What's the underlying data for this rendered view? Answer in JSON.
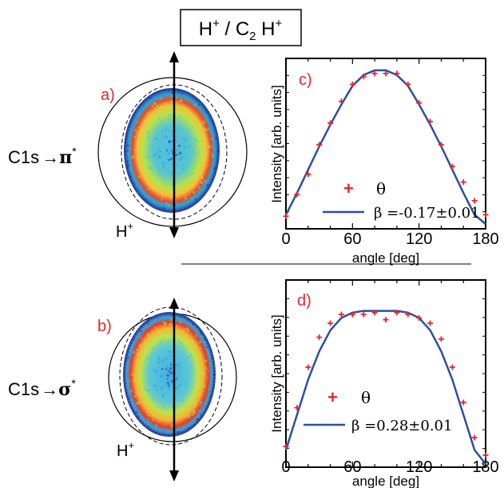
{
  "figure": {
    "title_main": "H",
    "title_sup1": "+",
    "title_sep": " / C",
    "title_sub": "2",
    "title_h": " H",
    "title_sup2": "+"
  },
  "chart_data": [
    {
      "type": "line",
      "panel_label": "c)",
      "transition_label": "C1s",
      "transition_arrow": "→",
      "transition_orbital": "π",
      "transition_star": "*",
      "ion_label": "H",
      "ion_sup": "+",
      "xlabel": "angle [deg]",
      "ylabel": "Intensity [arb. units]",
      "xlim": [
        0,
        180
      ],
      "ylim": [
        0,
        1
      ],
      "xticks": [
        "0",
        "60",
        "120",
        "180"
      ],
      "legend": {
        "marker_label": "θ",
        "line_label": "β =-0.17±0.01"
      },
      "colors": {
        "marker": "#e8262b",
        "line": "#2c4fa3",
        "label": "#e8262b"
      },
      "series": [
        {
          "kind": "scatter",
          "x": [
            0,
            10,
            20,
            30,
            40,
            50,
            60,
            70,
            80,
            90,
            100,
            110,
            120,
            130,
            140,
            150,
            160,
            170,
            180
          ],
          "y": [
            0.05,
            0.19,
            0.32,
            0.51,
            0.65,
            0.79,
            0.9,
            0.95,
            0.97,
            0.97,
            0.97,
            0.9,
            0.78,
            0.66,
            0.51,
            0.37,
            0.27,
            0.15,
            0.06
          ]
        },
        {
          "kind": "line",
          "x": [
            0,
            10,
            20,
            30,
            40,
            50,
            60,
            70,
            80,
            90,
            100,
            110,
            120,
            130,
            140,
            150,
            160,
            170,
            180
          ],
          "y": [
            0.06,
            0.2,
            0.35,
            0.5,
            0.64,
            0.77,
            0.89,
            0.96,
            0.99,
            0.99,
            0.96,
            0.89,
            0.77,
            0.64,
            0.5,
            0.35,
            0.2,
            0.06,
            0.0
          ]
        }
      ]
    },
    {
      "type": "line",
      "panel_label": "d)",
      "transition_label": "C1s",
      "transition_arrow": "→",
      "transition_orbital": "σ",
      "transition_star": "*",
      "ion_label": "H",
      "ion_sup": "+",
      "xlabel": "angle [deg]",
      "ylabel": "Intensity [arb. units]",
      "xlim": [
        0,
        180
      ],
      "ylim": [
        0,
        1
      ],
      "xticks": [
        "0",
        "60",
        "120",
        "180"
      ],
      "legend": {
        "marker_label": "θ",
        "line_label": "β =0.28±0.01"
      },
      "colors": {
        "marker": "#e8262b",
        "line": "#2c4fa3",
        "label": "#e8262b"
      },
      "series": [
        {
          "kind": "scatter",
          "x": [
            0,
            10,
            20,
            30,
            40,
            50,
            60,
            70,
            80,
            90,
            100,
            110,
            120,
            130,
            140,
            150,
            160,
            170,
            180
          ],
          "y": [
            0.1,
            0.32,
            0.55,
            0.72,
            0.8,
            0.85,
            0.85,
            0.85,
            0.86,
            0.82,
            0.86,
            0.85,
            0.83,
            0.8,
            0.71,
            0.55,
            0.35,
            0.15,
            0.05
          ]
        },
        {
          "kind": "line",
          "x": [
            0,
            10,
            20,
            30,
            40,
            50,
            60,
            70,
            80,
            90,
            100,
            110,
            120,
            130,
            140,
            150,
            160,
            170,
            180
          ],
          "y": [
            0.08,
            0.28,
            0.48,
            0.64,
            0.76,
            0.83,
            0.86,
            0.87,
            0.87,
            0.87,
            0.87,
            0.86,
            0.83,
            0.76,
            0.64,
            0.48,
            0.28,
            0.08,
            0.0
          ]
        }
      ]
    }
  ],
  "images": [
    {
      "panel_label": "a)",
      "image_type": "ion-momentum-contour-map"
    },
    {
      "panel_label": "b)",
      "image_type": "ion-momentum-contour-map"
    }
  ]
}
